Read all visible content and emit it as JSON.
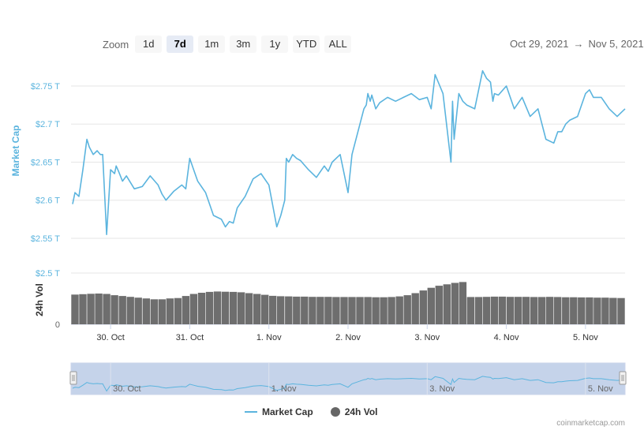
{
  "toolbar": {
    "zoom_label": "Zoom",
    "buttons": [
      "1d",
      "7d",
      "1m",
      "3m",
      "1y",
      "YTD",
      "ALL"
    ],
    "active": "7d",
    "range_start": "Oct 29, 2021",
    "range_arrow": "→",
    "range_end": "Nov 5, 2021"
  },
  "legend": {
    "market_cap": "Market Cap",
    "volume": "24h Vol"
  },
  "credit": "coinmarketcap.com",
  "colors": {
    "line": "#5bb4de",
    "bars": "#6e6e6e",
    "navigator_fill": "#c5d3ea",
    "grid": "#e6e6e6"
  },
  "chart_data": [
    {
      "type": "line",
      "name": "Market Cap",
      "ylabel": "Market Cap",
      "ylim": [
        2.55,
        2.78
      ],
      "yticks": [
        2.55,
        2.6,
        2.65,
        2.7,
        2.75
      ],
      "ytick_labels": [
        "$2.55 T",
        "$2.6 T",
        "$2.65 T",
        "$2.7 T",
        "$2.75 T"
      ],
      "xlim": [
        29.5,
        36.5
      ],
      "xticks": [
        30,
        31,
        32,
        33,
        34,
        35,
        36
      ],
      "xtick_labels": [
        "30. Oct",
        "31. Oct",
        "1. Nov",
        "2. Nov",
        "3. Nov",
        "4. Nov",
        "5. Nov"
      ],
      "x": [
        29.52,
        29.55,
        29.6,
        29.65,
        29.7,
        29.73,
        29.78,
        29.83,
        29.87,
        29.9,
        29.95,
        30.0,
        30.05,
        30.07,
        30.1,
        30.15,
        30.2,
        30.3,
        30.4,
        30.5,
        30.6,
        30.65,
        30.7,
        30.8,
        30.9,
        30.95,
        31.0,
        31.05,
        31.1,
        31.2,
        31.3,
        31.4,
        31.45,
        31.5,
        31.55,
        31.6,
        31.7,
        31.8,
        31.9,
        32.0,
        32.1,
        32.15,
        32.2,
        32.22,
        32.25,
        32.3,
        32.35,
        32.4,
        32.5,
        32.6,
        32.7,
        32.75,
        32.8,
        32.9,
        33.0,
        33.05,
        33.2,
        33.23,
        33.25,
        33.28,
        33.3,
        33.35,
        33.4,
        33.5,
        33.6,
        33.7,
        33.8,
        33.9,
        34.0,
        34.05,
        34.1,
        34.2,
        34.3,
        34.32,
        34.34,
        34.4,
        34.45,
        34.5,
        34.6,
        34.7,
        34.75,
        34.8,
        34.83,
        34.85,
        34.9,
        35.0,
        35.1,
        35.2,
        35.3,
        35.4,
        35.5,
        35.6,
        35.65,
        35.7,
        35.75,
        35.8,
        35.9,
        36.0,
        36.05,
        36.1,
        36.2,
        36.3,
        36.4,
        36.45,
        36.5
      ],
      "values": [
        2.595,
        2.61,
        2.605,
        2.64,
        2.68,
        2.67,
        2.66,
        2.665,
        2.66,
        2.66,
        2.555,
        2.64,
        2.635,
        2.645,
        2.638,
        2.625,
        2.632,
        2.615,
        2.618,
        2.632,
        2.62,
        2.608,
        2.6,
        2.612,
        2.62,
        2.615,
        2.655,
        2.64,
        2.625,
        2.61,
        2.58,
        2.575,
        2.565,
        2.572,
        2.57,
        2.59,
        2.605,
        2.628,
        2.635,
        2.62,
        2.565,
        2.58,
        2.6,
        2.655,
        2.65,
        2.66,
        2.655,
        2.652,
        2.64,
        2.63,
        2.645,
        2.638,
        2.65,
        2.66,
        2.61,
        2.66,
        2.72,
        2.725,
        2.74,
        2.73,
        2.738,
        2.72,
        2.728,
        2.735,
        2.73,
        2.735,
        2.74,
        2.732,
        2.735,
        2.72,
        2.765,
        2.74,
        2.65,
        2.73,
        2.68,
        2.74,
        2.73,
        2.725,
        2.72,
        2.77,
        2.76,
        2.755,
        2.73,
        2.74,
        2.738,
        2.75,
        2.72,
        2.735,
        2.71,
        2.72,
        2.68,
        2.675,
        2.69,
        2.69,
        2.7,
        2.705,
        2.71,
        2.74,
        2.745,
        2.735,
        2.735,
        2.72,
        2.71,
        2.715,
        2.72
      ]
    },
    {
      "type": "bar",
      "name": "24h Vol",
      "ylabel": "24h Vol",
      "ylim": [
        0,
        2.5
      ],
      "yticks": [
        0,
        2.5
      ],
      "ytick_labels": [
        "0",
        "$2.5 T"
      ],
      "x": [
        29.55,
        29.65,
        29.75,
        29.85,
        29.95,
        30.05,
        30.15,
        30.25,
        30.35,
        30.45,
        30.55,
        30.65,
        30.75,
        30.85,
        30.95,
        31.05,
        31.15,
        31.25,
        31.35,
        31.45,
        31.55,
        31.65,
        31.75,
        31.85,
        31.95,
        32.05,
        32.15,
        32.25,
        32.35,
        32.45,
        32.55,
        32.65,
        32.75,
        32.85,
        32.95,
        33.05,
        33.15,
        33.25,
        33.35,
        33.45,
        33.55,
        33.65,
        33.75,
        33.85,
        33.95,
        34.05,
        34.15,
        34.25,
        34.35,
        34.45,
        34.55,
        34.65,
        34.75,
        34.85,
        34.95,
        35.05,
        35.15,
        35.25,
        35.35,
        35.45,
        35.55,
        35.65,
        35.75,
        35.85,
        35.95,
        36.05,
        36.15,
        36.25,
        36.35,
        36.45
      ],
      "values": [
        1.45,
        1.47,
        1.49,
        1.5,
        1.48,
        1.42,
        1.38,
        1.34,
        1.3,
        1.26,
        1.22,
        1.22,
        1.26,
        1.28,
        1.38,
        1.48,
        1.54,
        1.58,
        1.6,
        1.59,
        1.58,
        1.56,
        1.52,
        1.48,
        1.44,
        1.39,
        1.37,
        1.36,
        1.35,
        1.35,
        1.34,
        1.34,
        1.34,
        1.33,
        1.33,
        1.33,
        1.33,
        1.33,
        1.32,
        1.32,
        1.33,
        1.36,
        1.42,
        1.52,
        1.65,
        1.78,
        1.88,
        1.95,
        2.02,
        2.06,
        1.33,
        1.33,
        1.34,
        1.35,
        1.35,
        1.34,
        1.34,
        1.34,
        1.33,
        1.33,
        1.34,
        1.33,
        1.32,
        1.32,
        1.31,
        1.31,
        1.3,
        1.3,
        1.29,
        1.28
      ]
    }
  ],
  "navigator": {
    "xtick_labels": [
      "30. Oct",
      "1. Nov",
      "3. Nov",
      "5. Nov"
    ],
    "xticks": [
      30,
      32,
      34,
      36
    ]
  }
}
